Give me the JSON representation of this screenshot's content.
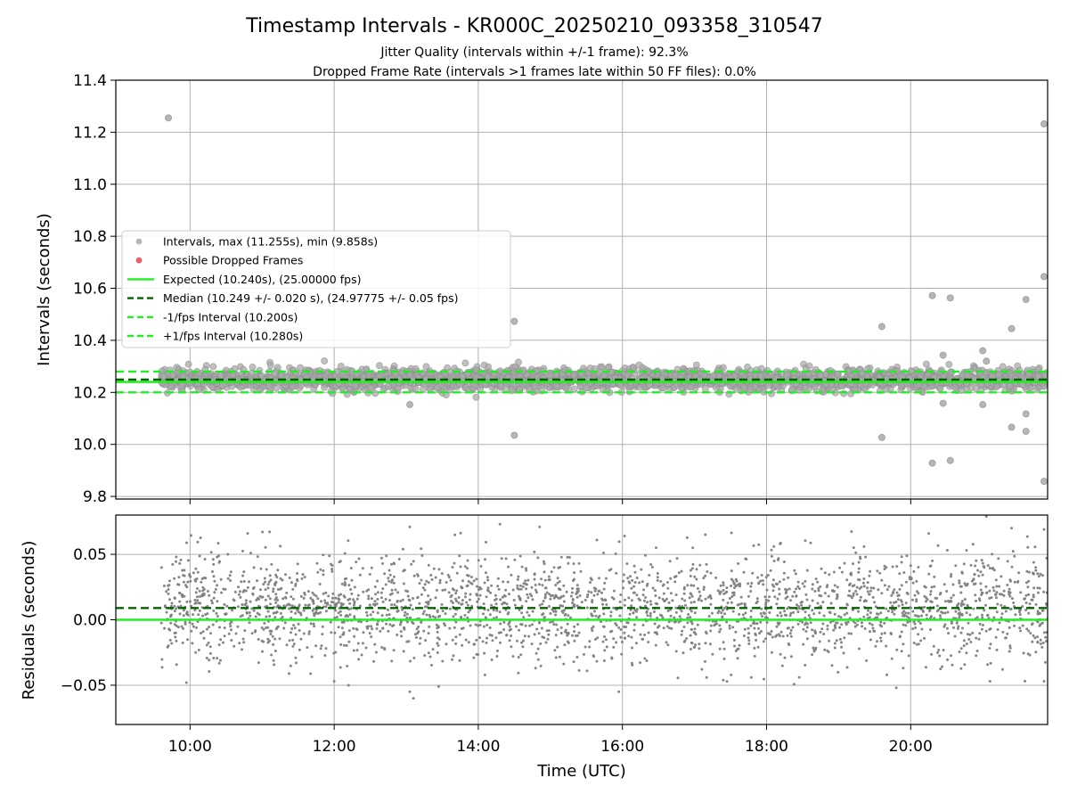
{
  "figure": {
    "title": "Timestamp Intervals - KR000C_20250210_093358_310547",
    "subtitle_1": "Jitter Quality (intervals within +/-1 frame): 92.3%",
    "subtitle_2": "Dropped Frame Rate (intervals >1 frames late within 50 FF files): 0.0%"
  },
  "colors": {
    "scatter_gray": "#808080",
    "dropped_red": "#e8474b",
    "expected_green": "#22ee22",
    "median_darkgreen": "#006400",
    "bound_green": "#22ee22",
    "grid": "#b0b0b0"
  },
  "chart_data": [
    {
      "id": "intervals",
      "type": "scatter",
      "ylabel": "Intervals (seconds)",
      "ylim": [
        9.79,
        11.4
      ],
      "yticks": [
        9.8,
        10.0,
        10.2,
        10.4,
        10.6,
        10.8,
        11.0,
        11.2,
        11.4
      ],
      "ytick_labels": [
        "9.8",
        "10.0",
        "10.2",
        "10.4",
        "10.6",
        "10.8",
        "11.0",
        "11.2",
        "11.4"
      ],
      "xlim_hours": [
        8.97,
        21.9
      ],
      "xticks_hours": [
        10,
        12,
        14,
        16,
        18,
        20
      ],
      "grid": true,
      "legend_position": "center-left",
      "legend": [
        {
          "label": "Intervals, max (11.255s), min (9.858s)",
          "marker": "dot",
          "color": "#aaaaaa"
        },
        {
          "label": "Possible Dropped Frames",
          "marker": "dot",
          "color": "#e8474b"
        },
        {
          "label": "Expected (10.240s), (25.00000 fps)",
          "marker": "line",
          "color": "#22ee22"
        },
        {
          "label": "Median (10.249 +/- 0.020 s), (24.97775 +/- 0.05 fps)",
          "marker": "dashed",
          "color": "#006400"
        },
        {
          "label": "-1/fps Interval (10.200s)",
          "marker": "dashed",
          "color": "#22ee22"
        },
        {
          "label": "+1/fps Interval (10.280s)",
          "marker": "dashed",
          "color": "#22ee22"
        }
      ],
      "reference_lines": [
        {
          "name": "expected",
          "y": 10.24,
          "style": "solid",
          "color": "#22ee22"
        },
        {
          "name": "median",
          "y": 10.249,
          "style": "dashed",
          "color": "#006400"
        },
        {
          "name": "minus_one_frame",
          "y": 10.2,
          "style": "dashed",
          "color": "#22ee22"
        },
        {
          "name": "plus_one_frame",
          "y": 10.28,
          "style": "dashed",
          "color": "#22ee22"
        }
      ],
      "bulk_band": {
        "x_start_hours": 9.6,
        "x_end_hours": 21.9,
        "y_center": 10.249,
        "y_spread": 0.02
      },
      "outliers": [
        {
          "x": 9.7,
          "y": 11.255
        },
        {
          "x": 21.85,
          "y": 11.232
        },
        {
          "x": 21.85,
          "y": 10.645
        },
        {
          "x": 20.3,
          "y": 10.572
        },
        {
          "x": 20.55,
          "y": 10.563
        },
        {
          "x": 21.6,
          "y": 10.557
        },
        {
          "x": 14.5,
          "y": 10.473
        },
        {
          "x": 19.6,
          "y": 10.453
        },
        {
          "x": 21.4,
          "y": 10.445
        },
        {
          "x": 21.0,
          "y": 10.36
        },
        {
          "x": 20.45,
          "y": 10.343
        },
        {
          "x": 21.05,
          "y": 10.32
        },
        {
          "x": 14.5,
          "y": 10.035
        },
        {
          "x": 19.6,
          "y": 10.027
        },
        {
          "x": 20.3,
          "y": 9.928
        },
        {
          "x": 20.55,
          "y": 9.938
        },
        {
          "x": 21.4,
          "y": 10.066
        },
        {
          "x": 21.6,
          "y": 10.05
        },
        {
          "x": 21.6,
          "y": 10.117
        },
        {
          "x": 20.45,
          "y": 10.158
        },
        {
          "x": 21.0,
          "y": 10.153
        },
        {
          "x": 13.05,
          "y": 10.153
        },
        {
          "x": 21.85,
          "y": 9.858
        }
      ]
    },
    {
      "id": "residuals",
      "type": "scatter",
      "ylabel": "Residuals (seconds)",
      "xlabel": "Time (UTC)",
      "ylim": [
        -0.08,
        0.08
      ],
      "yticks": [
        -0.05,
        0.0,
        0.05
      ],
      "ytick_labels": [
        "−0.05",
        "0.00",
        "0.05"
      ],
      "xlim_hours": [
        8.97,
        21.9
      ],
      "xticks_hours": [
        10,
        12,
        14,
        16,
        18,
        20
      ],
      "xtick_labels": [
        "10:00",
        "12:00",
        "14:00",
        "16:00",
        "18:00",
        "20:00"
      ],
      "grid": true,
      "reference_lines": [
        {
          "name": "zero",
          "y": 0.0,
          "style": "solid",
          "color": "#22ee22"
        },
        {
          "name": "median_offset",
          "y": 0.009,
          "style": "dashed",
          "color": "#006400"
        }
      ],
      "bulk_band": {
        "x_start_hours": 9.6,
        "x_end_hours": 21.9,
        "y_center": 0.009,
        "y_spread": 0.02
      },
      "outliers": [
        {
          "x": 9.95,
          "y": -0.048
        },
        {
          "x": 12.0,
          "y": -0.047
        },
        {
          "x": 12.2,
          "y": -0.05
        },
        {
          "x": 13.05,
          "y": -0.055
        },
        {
          "x": 13.1,
          "y": -0.06
        },
        {
          "x": 13.45,
          "y": -0.051
        },
        {
          "x": 15.95,
          "y": -0.055
        },
        {
          "x": 19.8,
          "y": -0.052
        },
        {
          "x": 21.1,
          "y": -0.047
        },
        {
          "x": 21.85,
          "y": -0.047
        },
        {
          "x": 13.05,
          "y": 0.071
        },
        {
          "x": 14.3,
          "y": 0.073
        },
        {
          "x": 14.85,
          "y": 0.071
        },
        {
          "x": 21.05,
          "y": 0.079
        },
        {
          "x": 21.4,
          "y": 0.07
        },
        {
          "x": 21.85,
          "y": 0.069
        },
        {
          "x": 10.8,
          "y": 0.066
        },
        {
          "x": 17.15,
          "y": 0.065
        }
      ]
    }
  ]
}
